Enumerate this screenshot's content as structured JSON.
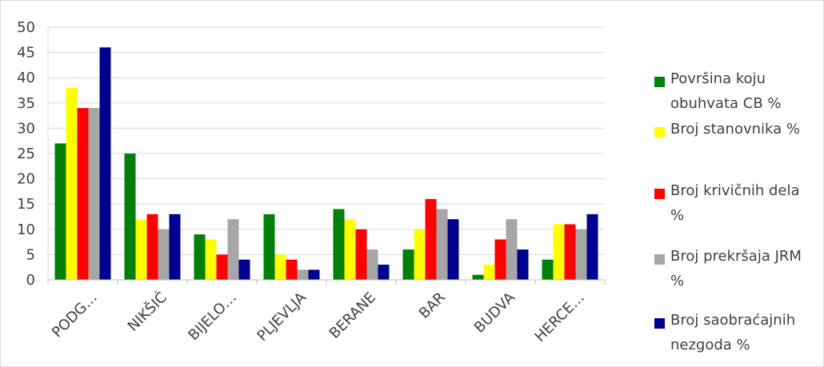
{
  "chart_data": {
    "type": "bar",
    "categories": [
      "PODG…",
      "NIKŠIĆ",
      "BIJELO…",
      "PLJEVLJA",
      "BERANE",
      "BAR",
      "BUDVA",
      "HERCE…"
    ],
    "series": [
      {
        "name": "Površina koju obuhvata CB %",
        "color": "#00800b",
        "values": [
          27,
          25,
          9,
          13,
          14,
          6,
          1,
          4
        ]
      },
      {
        "name": "Broj stanovnika %",
        "color": "#ffff00",
        "values": [
          38,
          12,
          8,
          5,
          12,
          10,
          3,
          11
        ]
      },
      {
        "name": "Broj krivičnih dela %",
        "color": "#ff0000",
        "values": [
          34,
          13,
          5,
          4,
          10,
          16,
          8,
          11
        ]
      },
      {
        "name": "Broj prekršaja JRM %",
        "color": "#a6a6a6",
        "values": [
          34,
          10,
          12,
          2,
          6,
          14,
          12,
          10
        ]
      },
      {
        "name": "Broj saobraćajnih nezgoda %",
        "color": "#000090",
        "values": [
          46,
          13,
          4,
          2,
          3,
          12,
          6,
          13
        ]
      }
    ],
    "ylim": [
      0,
      50
    ],
    "yticks": [
      0,
      5,
      10,
      15,
      20,
      25,
      30,
      35,
      40,
      45,
      50
    ],
    "grid": true,
    "legend_position": "right",
    "title": "",
    "xlabel": "",
    "ylabel": ""
  }
}
